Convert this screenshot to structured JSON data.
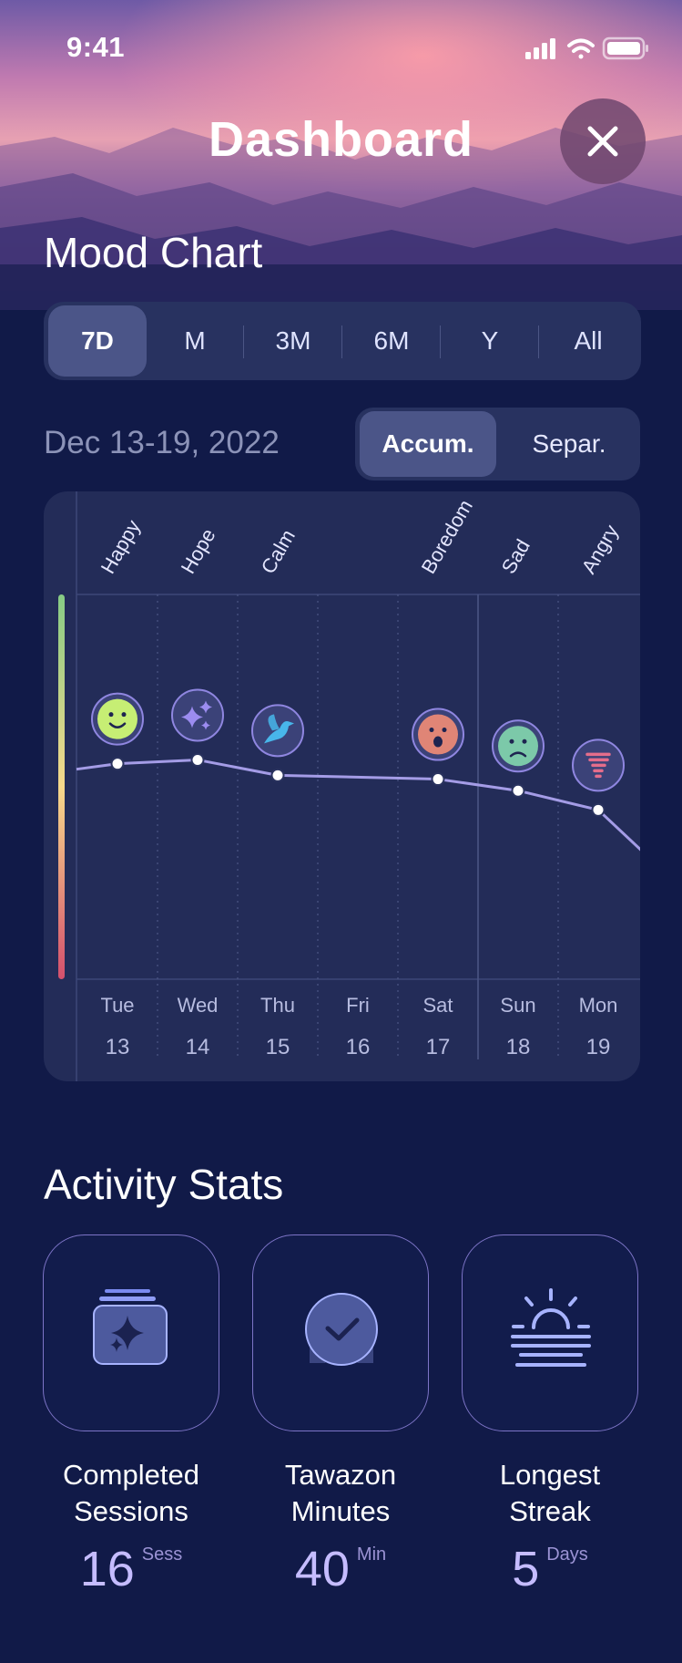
{
  "status_bar": {
    "time": "9:41"
  },
  "header": {
    "title": "Dashboard"
  },
  "mood_chart": {
    "heading": "Mood Chart",
    "ranges": [
      "7D",
      "M",
      "3M",
      "6M",
      "Y",
      "All"
    ],
    "active_range": "7D",
    "date_range": "Dec 13-19, 2022",
    "views": [
      "Accum.",
      "Separ."
    ],
    "active_view": "Accum."
  },
  "chart_data": {
    "type": "line",
    "title": "",
    "x": [
      {
        "day": "Tue",
        "date": "13"
      },
      {
        "day": "Wed",
        "date": "14"
      },
      {
        "day": "Thu",
        "date": "15"
      },
      {
        "day": "Fri",
        "date": "16"
      },
      {
        "day": "Sat",
        "date": "17"
      },
      {
        "day": "Sun",
        "date": "18"
      },
      {
        "day": "Mon",
        "date": "19"
      }
    ],
    "moods": [
      "Happy",
      "Hope",
      "Calm",
      "",
      "Boredom",
      "Sad",
      "Angry"
    ],
    "mood_icons": [
      "smile-face",
      "sparkles",
      "bird",
      "",
      "open-mouth-face",
      "frown-face",
      "tornado"
    ],
    "mood_colors": [
      "#c6ee74",
      "#9c8cf0",
      "#48b6ea",
      "",
      "#e08576",
      "#7cc9a9",
      "#e46d8b"
    ],
    "values": [
      0.56,
      0.57,
      0.53,
      null,
      0.52,
      0.49,
      0.44
    ],
    "trailing_value": 0.32,
    "ylim": [
      0,
      1
    ],
    "line_color": "#a49ce6",
    "scale_colors": [
      "#86cb85",
      "#f6d98b",
      "#d4506d"
    ]
  },
  "activity": {
    "heading": "Activity Stats",
    "stats": [
      {
        "label_1": "Completed",
        "label_2": "Sessions",
        "value": "16",
        "unit": "Sess",
        "icon": "session-stack"
      },
      {
        "label_1": "Tawazon",
        "label_2": "Minutes",
        "value": "40",
        "unit": "Min",
        "icon": "clock-check"
      },
      {
        "label_1": "Longest",
        "label_2": "Streak",
        "value": "5",
        "unit": "Days",
        "icon": "sunrise"
      }
    ]
  }
}
